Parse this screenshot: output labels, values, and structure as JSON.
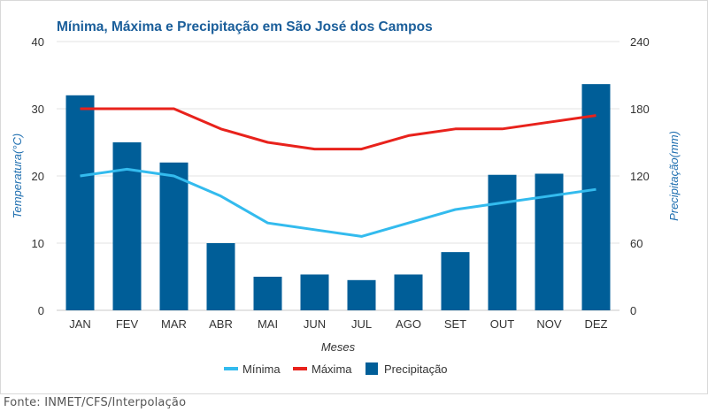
{
  "source_note": "Fonte: INMET/CFS/Interpolação",
  "colors": {
    "title": "#1a5e9a",
    "minima": "#33bbee",
    "maxima": "#e8221c",
    "precip": "#005e98",
    "axis_label": "#1f6fb0",
    "grid": "#e3e3e3"
  },
  "chart_data": {
    "type": "bar+line",
    "title": "Mínima, Máxima e Precipitação em São José dos Campos",
    "xlabel": "Meses",
    "ylabel_left": "Temperatura(°C)",
    "ylabel_right": "Precipitação(mm)",
    "categories": [
      "JAN",
      "FEV",
      "MAR",
      "ABR",
      "MAI",
      "JUN",
      "JUL",
      "AGO",
      "SET",
      "OUT",
      "NOV",
      "DEZ"
    ],
    "ylim_left": [
      0,
      40
    ],
    "yticks_left": [
      0,
      10,
      20,
      30,
      40
    ],
    "ylim_right": [
      0,
      240
    ],
    "yticks_right": [
      0,
      60,
      120,
      180,
      240
    ],
    "grid": true,
    "legend_position": "bottom",
    "series": [
      {
        "name": "Mínima",
        "type": "line",
        "axis": "left",
        "color": "#33bbee",
        "values": [
          20,
          21,
          20,
          17,
          13,
          12,
          11,
          13,
          15,
          16,
          17,
          18
        ]
      },
      {
        "name": "Máxima",
        "type": "line",
        "axis": "left",
        "color": "#e8221c",
        "values": [
          30,
          30,
          30,
          27,
          25,
          24,
          24,
          26,
          27,
          27,
          28,
          29
        ]
      },
      {
        "name": "Precipitação",
        "type": "bar",
        "axis": "right",
        "color": "#005e98",
        "values": [
          192,
          150,
          132,
          60,
          30,
          32,
          27,
          32,
          52,
          121,
          122,
          202
        ]
      }
    ]
  }
}
